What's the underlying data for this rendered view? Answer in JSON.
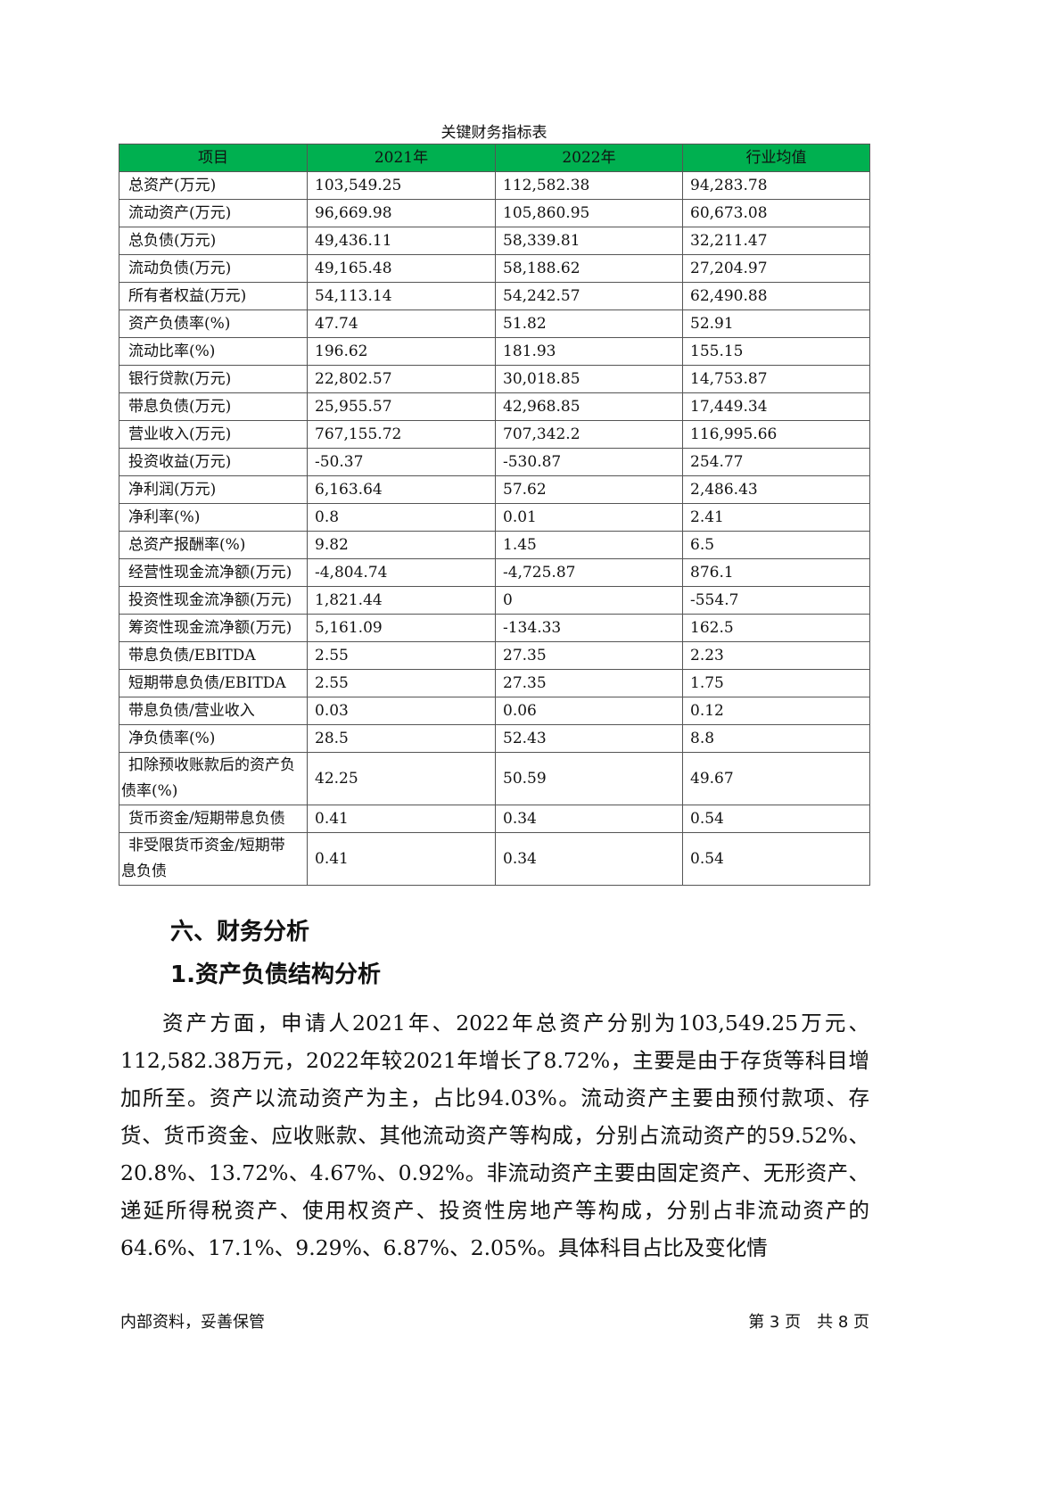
{
  "table": {
    "caption": "关键财务指标表",
    "headers": [
      "项目",
      "2021年",
      "2022年",
      "行业均值"
    ],
    "rows": [
      [
        "总资产(万元)",
        "103,549.25",
        "112,582.38",
        "94,283.78"
      ],
      [
        "流动资产(万元)",
        "96,669.98",
        "105,860.95",
        "60,673.08"
      ],
      [
        "总负债(万元)",
        "49,436.11",
        "58,339.81",
        "32,211.47"
      ],
      [
        "流动负债(万元)",
        "49,165.48",
        "58,188.62",
        "27,204.97"
      ],
      [
        "所有者权益(万元)",
        "54,113.14",
        "54,242.57",
        "62,490.88"
      ],
      [
        "资产负债率(%)",
        "47.74",
        "51.82",
        "52.91"
      ],
      [
        "流动比率(%)",
        "196.62",
        "181.93",
        "155.15"
      ],
      [
        "银行贷款(万元)",
        "22,802.57",
        "30,018.85",
        "14,753.87"
      ],
      [
        "带息负债(万元)",
        "25,955.57",
        "42,968.85",
        "17,449.34"
      ],
      [
        "营业收入(万元)",
        "767,155.72",
        "707,342.2",
        "116,995.66"
      ],
      [
        "投资收益(万元)",
        "-50.37",
        "-530.87",
        "254.77"
      ],
      [
        "净利润(万元)",
        "6,163.64",
        "57.62",
        "2,486.43"
      ],
      [
        "净利率(%)",
        "0.8",
        "0.01",
        "2.41"
      ],
      [
        "总资产报酬率(%)",
        "9.82",
        "1.45",
        "6.5"
      ],
      [
        "经营性现金流净额(万元)",
        "-4,804.74",
        "-4,725.87",
        "876.1"
      ],
      [
        "投资性现金流净额(万元)",
        "1,821.44",
        "0",
        "-554.7"
      ],
      [
        "筹资性现金流净额(万元)",
        "5,161.09",
        "-134.33",
        "162.5"
      ],
      [
        "带息负债/EBITDA",
        "2.55",
        "27.35",
        "2.23"
      ],
      [
        "短期带息负债/EBITDA",
        "2.55",
        "27.35",
        "1.75"
      ],
      [
        "带息负债/营业收入",
        "0.03",
        "0.06",
        "0.12"
      ],
      [
        "净负债率(%)",
        "28.5",
        "52.43",
        "8.8"
      ],
      [
        "扣除预收账款后的资产负债率(%)",
        "42.25",
        "50.59",
        "49.67"
      ],
      [
        "货币资金/短期带息负债",
        "0.41",
        "0.34",
        "0.54"
      ],
      [
        "非受限货币资金/短期带息负债",
        "0.41",
        "0.34",
        "0.54"
      ]
    ]
  },
  "heading1": "六、财务分析",
  "heading2": "1.资产负债结构分析",
  "paragraph": "资产方面，申请人2021年、2022年总资产分别为103,549.25万元、112,582.38万元，2022年较2021年增长了8.72%，主要是由于存货等科目增加所至。资产以流动资产为主，占比94.03%。流动资产主要由预付款项、存货、货币资金、应收账款、其他流动资产等构成，分别占流动资产的59.52%、20.8%、13.72%、4.67%、0.92%。非流动资产主要由固定资产、无形资产、递延所得税资产、使用权资产、投资性房地产等构成，分别占非流动资产的64.6%、17.1%、9.29%、6.87%、2.05%。具体科目占比及变化情",
  "footer": {
    "left": "内部资料，妥善保管",
    "right": "第 3 页　共 8 页"
  },
  "colors": {
    "header_bg": "#00b050"
  }
}
